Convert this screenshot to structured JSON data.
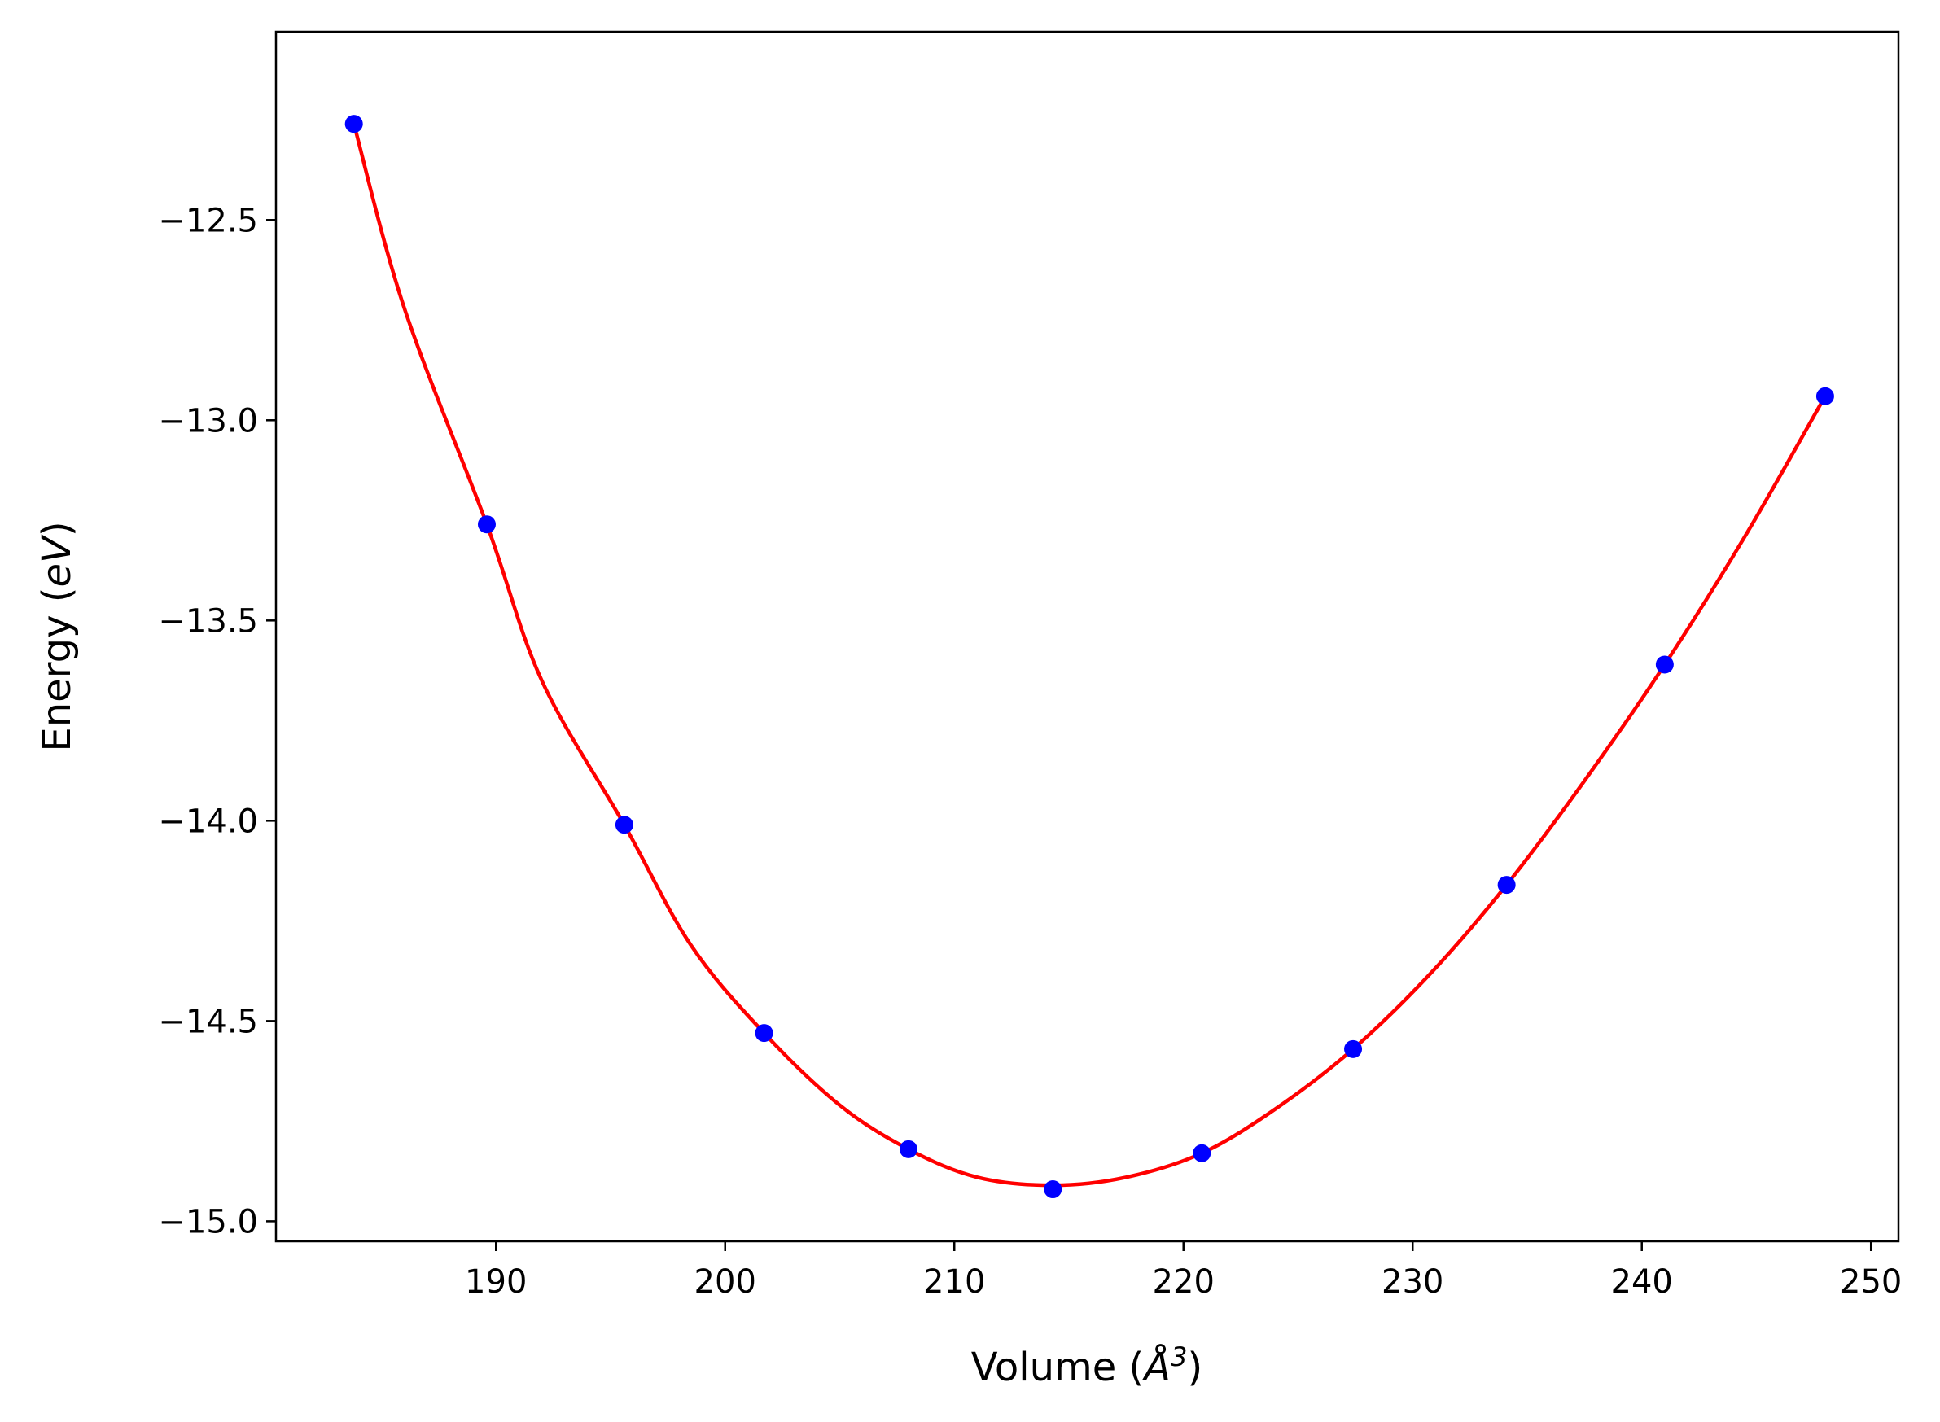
{
  "chart_data": {
    "type": "scatter",
    "title": "",
    "xlabel": {
      "prefix": "Volume (",
      "symbol": "Å",
      "superscript": "3",
      "suffix": ")"
    },
    "ylabel": {
      "prefix": "Energy (",
      "symbol": "eV",
      "suffix": ")"
    },
    "xlim": [
      180.4,
      251.2
    ],
    "ylim": [
      -15.05,
      -12.03
    ],
    "xticks": [
      190,
      200,
      210,
      220,
      230,
      240,
      250
    ],
    "xtick_labels": [
      "190",
      "200",
      "210",
      "220",
      "230",
      "240",
      "250"
    ],
    "yticks": [
      -12.5,
      -13.0,
      -13.5,
      -14.0,
      -14.5,
      -15.0
    ],
    "ytick_labels": [
      "−12.5",
      "−13.0",
      "−13.5",
      "−14.0",
      "−14.5",
      "−15.0"
    ],
    "grid": false,
    "series": [
      {
        "kind": "scatter",
        "color": "#0000ff",
        "x": [
          183.8,
          189.6,
          195.6,
          201.7,
          208.0,
          214.3,
          220.8,
          227.4,
          234.1,
          241.0,
          248.0
        ],
        "y": [
          -12.26,
          -13.26,
          -14.01,
          -14.53,
          -14.82,
          -14.92,
          -14.83,
          -14.57,
          -14.16,
          -13.61,
          -12.94
        ]
      },
      {
        "kind": "fit-line",
        "color": "#ff0000",
        "x": [
          183.8,
          186.0,
          189.6,
          192.0,
          195.6,
          198.5,
          201.7,
          205.0,
          208.0,
          211.0,
          214.3,
          217.5,
          220.8,
          224.0,
          227.4,
          230.8,
          234.1,
          237.5,
          241.0,
          244.5,
          248.0
        ],
        "y": [
          -12.26,
          -12.72,
          -13.26,
          -13.65,
          -14.01,
          -14.31,
          -14.53,
          -14.71,
          -14.82,
          -14.89,
          -14.91,
          -14.89,
          -14.83,
          -14.72,
          -14.57,
          -14.38,
          -14.16,
          -13.9,
          -13.61,
          -13.29,
          -12.94
        ]
      }
    ]
  }
}
